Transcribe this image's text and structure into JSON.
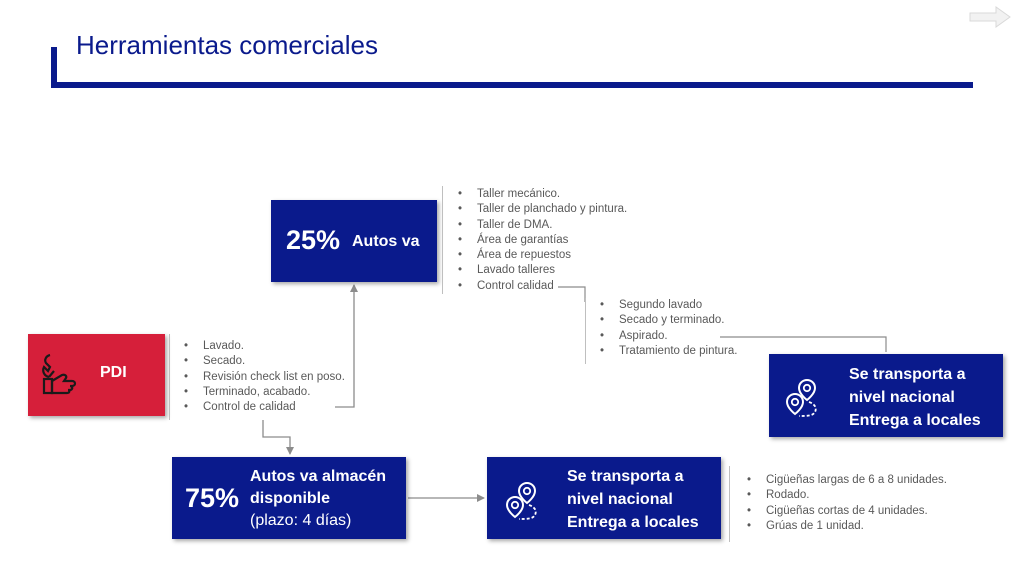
{
  "title": "Herramientas comerciales",
  "icons": {
    "next": "arrow-right-icon",
    "pdi": "mechanic-hand-wrench-icon",
    "transport": "map-pin-route-icon"
  },
  "colors": {
    "navy": "#0a1a8c",
    "red": "#d61f3a",
    "bullet_text": "#595959"
  },
  "pdi": {
    "label": "PDI",
    "steps": [
      "Lavado.",
      "Secado.",
      "Revisión check list en poso.",
      "Terminado, acabado.",
      "Control de calidad"
    ]
  },
  "branch_25": {
    "percent": "25%",
    "label": "Autos va",
    "steps": [
      "Taller mecánico.",
      "Taller de planchado y pintura.",
      "Taller de DMA.",
      "Área de garantías",
      "Área de repuestos",
      "Lavado talleres",
      "Control calidad"
    ],
    "finishing_steps": [
      "Segundo lavado",
      "Secado y terminado.",
      "Aspirado.",
      "Tratamiento de pintura."
    ],
    "transport": {
      "line1": "Se transporta a",
      "line2": "nivel nacional",
      "line3": "Entrega a locales"
    }
  },
  "branch_75": {
    "percent": "75%",
    "label_line1": "Autos va almacén",
    "label_line2": "disponible",
    "label_line3": "(plazo: 4 días)",
    "transport": {
      "line1": "Se transporta a",
      "line2": "nivel nacional",
      "line3": "Entrega a locales"
    },
    "transport_modes": [
      "Cigüeñas largas de 6 a 8 unidades.",
      "Rodado.",
      "Cigüeñas cortas de 4 unidades.",
      "Grúas de 1 unidad."
    ]
  }
}
